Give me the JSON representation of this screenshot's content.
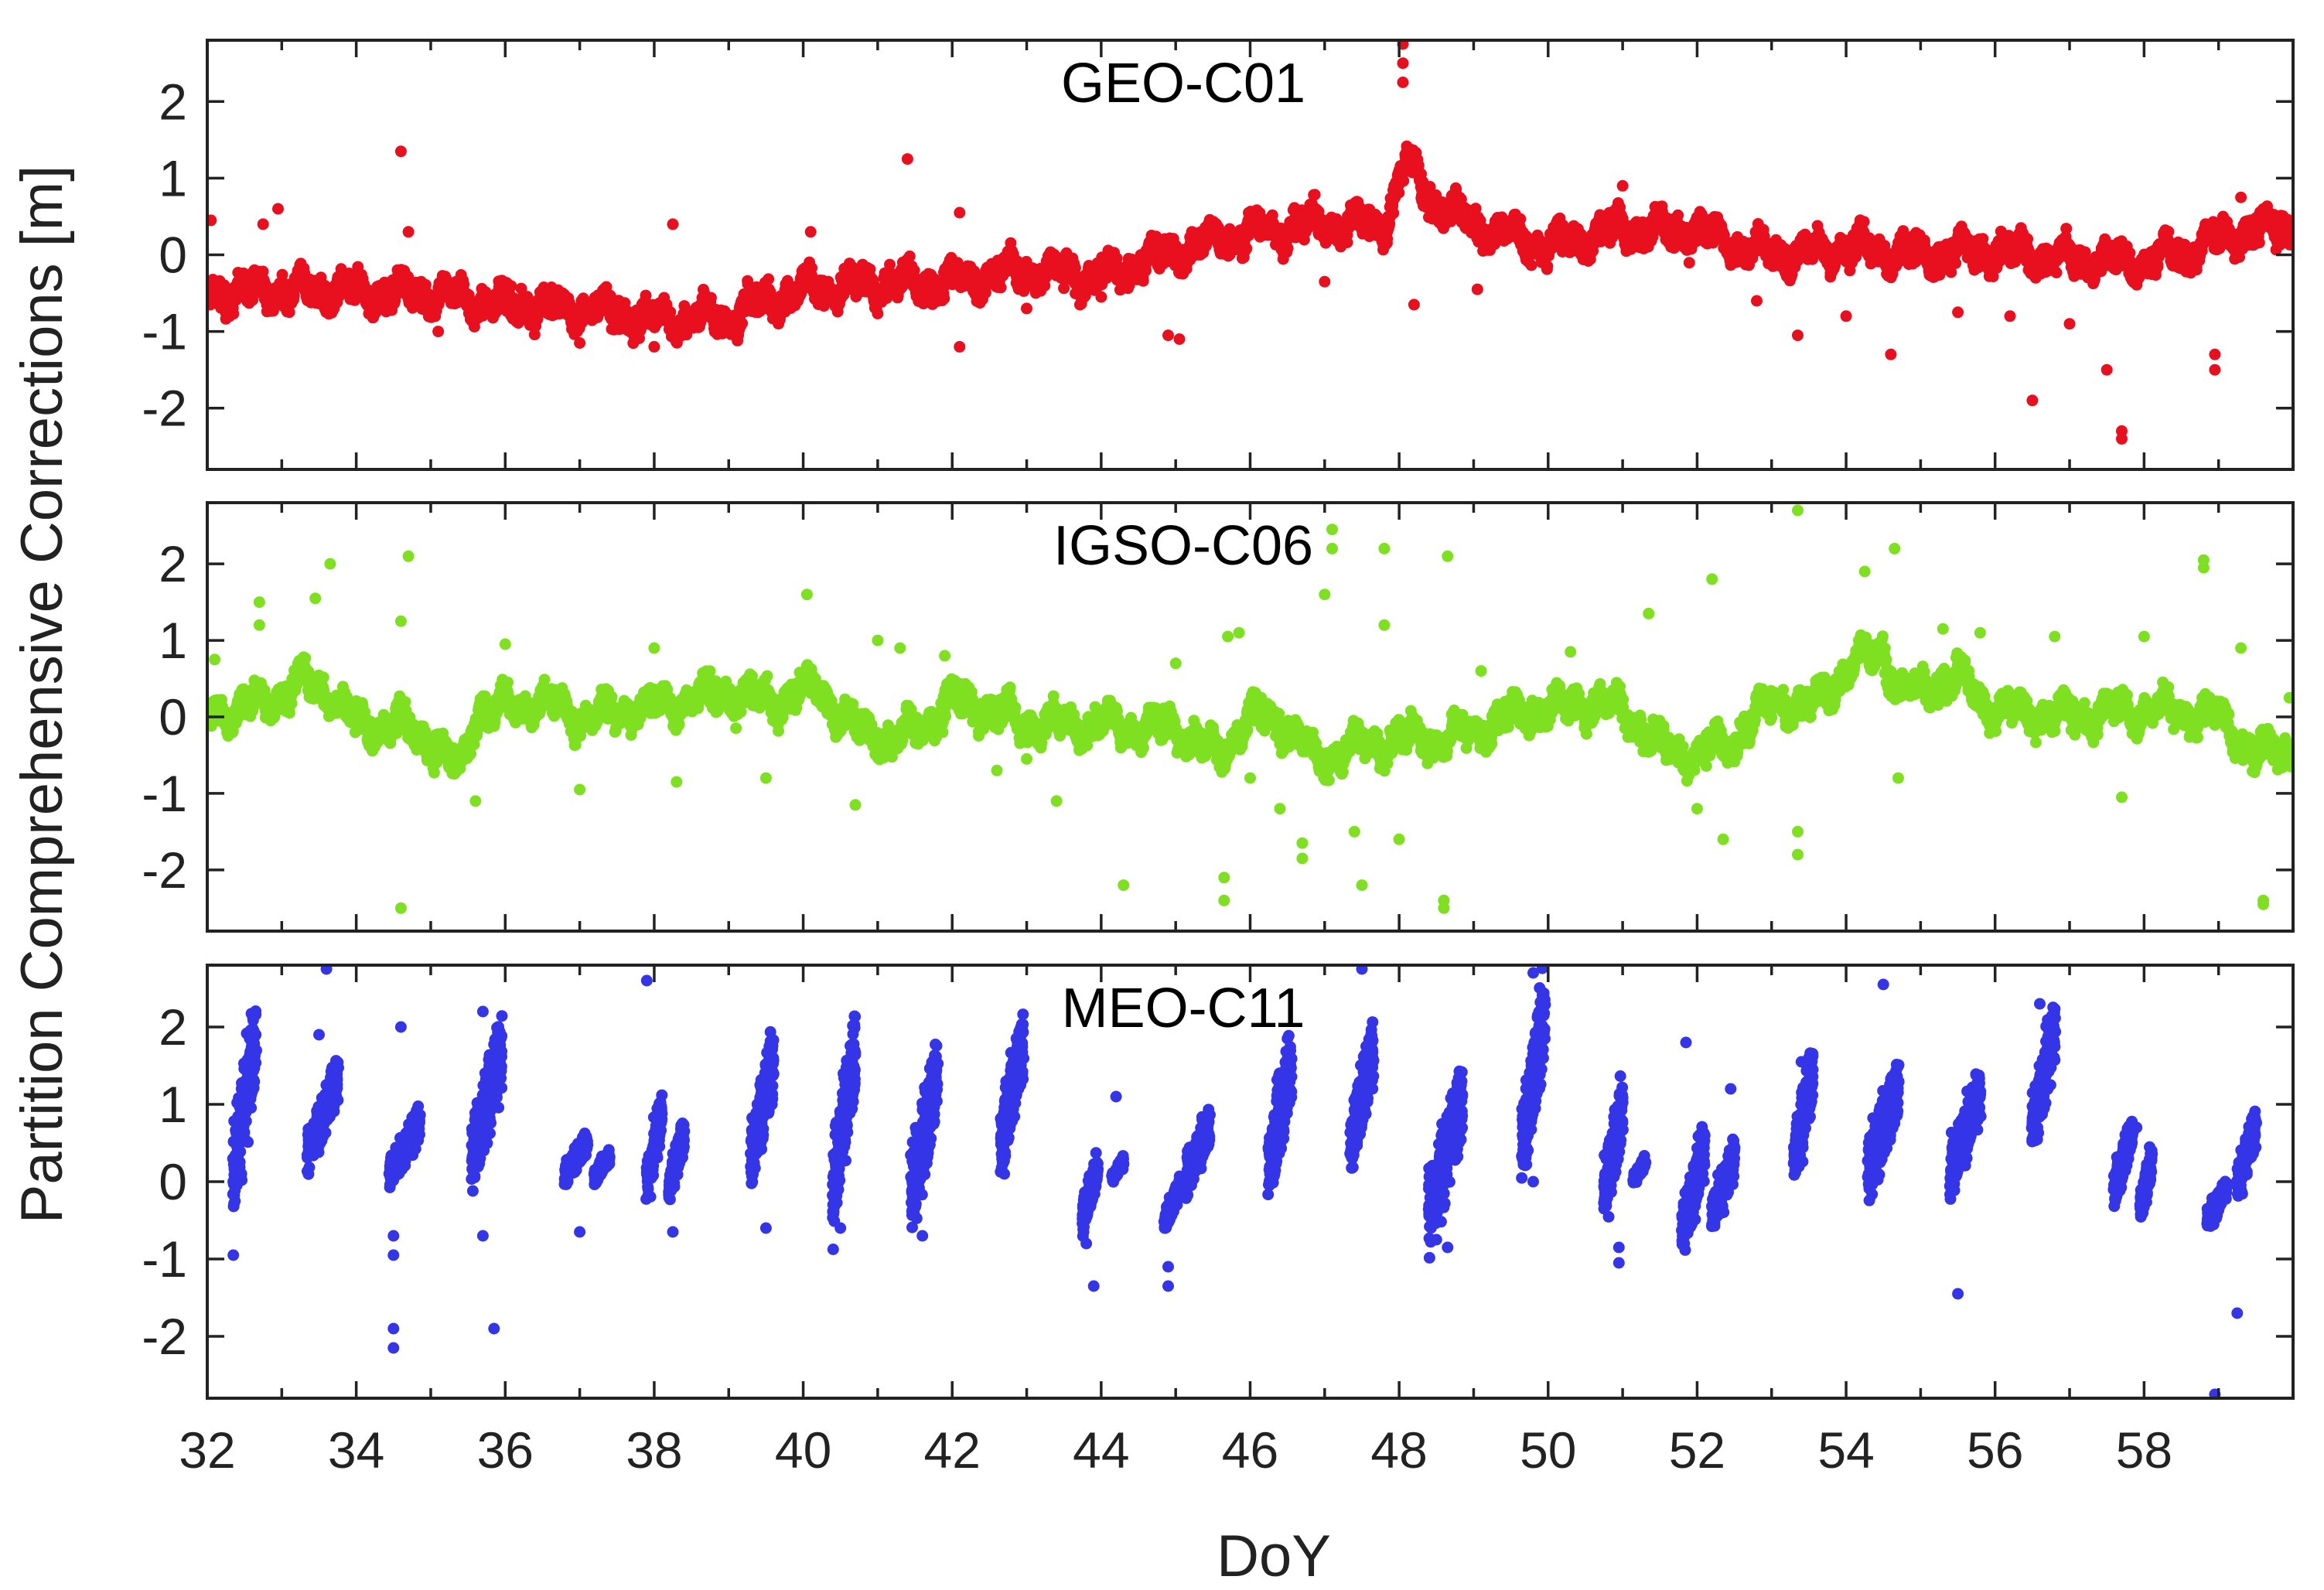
{
  "chart_data": {
    "type": "scatter",
    "ylabel": "Partition Comprehensive Corrections [m]",
    "xlabel": "DoY",
    "xlim": [
      32,
      60
    ],
    "x_ticks": [
      32,
      34,
      36,
      38,
      40,
      42,
      44,
      46,
      48,
      50,
      52,
      54,
      56,
      58
    ],
    "x_minor_ticks": [
      33,
      35,
      37,
      39,
      41,
      43,
      45,
      47,
      49,
      51,
      53,
      55,
      57,
      59
    ],
    "ylim": [
      -2.8,
      2.8
    ],
    "y_ticks": [
      -2,
      -1,
      0,
      1,
      2
    ],
    "grid": false,
    "legend": "none",
    "panels": [
      {
        "title": "GEO-C01",
        "color": "#e8101e",
        "pattern": "continuous",
        "baseline": [
          [
            32.0,
            -0.5
          ],
          [
            33.0,
            -0.45
          ],
          [
            34.0,
            -0.5
          ],
          [
            35.0,
            -0.5
          ],
          [
            36.0,
            -0.65
          ],
          [
            37.0,
            -0.7
          ],
          [
            38.0,
            -0.85
          ],
          [
            39.0,
            -0.8
          ],
          [
            40.0,
            -0.45
          ],
          [
            41.0,
            -0.4
          ],
          [
            42.0,
            -0.35
          ],
          [
            43.0,
            -0.2
          ],
          [
            44.0,
            -0.3
          ],
          [
            45.0,
            0.05
          ],
          [
            46.0,
            0.3
          ],
          [
            47.0,
            0.4
          ],
          [
            47.8,
            0.4
          ],
          [
            48.1,
            1.2
          ],
          [
            48.5,
            0.65
          ],
          [
            49.0,
            0.4
          ],
          [
            50.0,
            0.1
          ],
          [
            51.0,
            0.35
          ],
          [
            52.0,
            0.3
          ],
          [
            53.0,
            0.0
          ],
          [
            54.0,
            0.1
          ],
          [
            55.0,
            0.0
          ],
          [
            56.0,
            0.05
          ],
          [
            57.0,
            -0.05
          ],
          [
            58.0,
            -0.1
          ],
          [
            59.0,
            0.2
          ],
          [
            60.0,
            0.4
          ]
        ],
        "outliers": [
          [
            32.05,
            0.45
          ],
          [
            32.3,
            -0.8
          ],
          [
            32.75,
            0.4
          ],
          [
            32.95,
            0.6
          ],
          [
            34.6,
            1.35
          ],
          [
            34.7,
            0.3
          ],
          [
            35.1,
            -1.0
          ],
          [
            37.0,
            -1.15
          ],
          [
            38.0,
            -1.2
          ],
          [
            38.25,
            0.4
          ],
          [
            40.1,
            0.3
          ],
          [
            41.4,
            1.25
          ],
          [
            41.7,
            -0.35
          ],
          [
            42.1,
            -1.2
          ],
          [
            42.1,
            0.55
          ],
          [
            43.0,
            -0.7
          ],
          [
            44.0,
            -0.55
          ],
          [
            44.9,
            -1.05
          ],
          [
            45.05,
            -1.1
          ],
          [
            47.0,
            -0.35
          ],
          [
            48.05,
            2.75
          ],
          [
            48.05,
            2.5
          ],
          [
            48.05,
            2.25
          ],
          [
            48.2,
            -0.65
          ],
          [
            49.05,
            -0.45
          ],
          [
            51.0,
            0.9
          ],
          [
            52.8,
            -0.6
          ],
          [
            53.35,
            -1.05
          ],
          [
            54.0,
            -0.8
          ],
          [
            54.6,
            -1.3
          ],
          [
            55.5,
            -0.75
          ],
          [
            56.2,
            -0.8
          ],
          [
            56.5,
            -1.9
          ],
          [
            57.0,
            -0.9
          ],
          [
            57.5,
            -1.5
          ],
          [
            57.7,
            -2.3
          ],
          [
            57.7,
            -2.4
          ],
          [
            58.95,
            -1.3
          ],
          [
            58.95,
            -1.5
          ],
          [
            59.3,
            0.75
          ]
        ]
      },
      {
        "title": "IGSO-C06",
        "color": "#7ee020",
        "pattern": "continuous",
        "baseline": [
          [
            32.0,
            0.05
          ],
          [
            32.5,
            0.1
          ],
          [
            33.0,
            0.3
          ],
          [
            33.3,
            0.45
          ],
          [
            33.6,
            0.35
          ],
          [
            34.0,
            -0.1
          ],
          [
            34.5,
            -0.1
          ],
          [
            35.0,
            -0.3
          ],
          [
            35.4,
            -0.7
          ],
          [
            35.6,
            0.05
          ],
          [
            36.5,
            0.2
          ],
          [
            37.0,
            0.0
          ],
          [
            38.0,
            0.15
          ],
          [
            39.0,
            0.3
          ],
          [
            39.6,
            0.2
          ],
          [
            40.2,
            0.4
          ],
          [
            40.6,
            -0.1
          ],
          [
            41.2,
            -0.3
          ],
          [
            41.6,
            -0.1
          ],
          [
            42.0,
            0.2
          ],
          [
            42.5,
            0.1
          ],
          [
            43.0,
            -0.1
          ],
          [
            44.0,
            -0.1
          ],
          [
            45.0,
            -0.15
          ],
          [
            45.6,
            -0.5
          ],
          [
            46.0,
            0.0
          ],
          [
            46.5,
            -0.1
          ],
          [
            46.9,
            -0.6
          ],
          [
            47.3,
            -0.4
          ],
          [
            48.0,
            -0.3
          ],
          [
            48.5,
            -0.3
          ],
          [
            49.0,
            -0.2
          ],
          [
            49.5,
            0.0
          ],
          [
            50.5,
            0.2
          ],
          [
            51.0,
            0.1
          ],
          [
            51.5,
            -0.4
          ],
          [
            52.0,
            -0.5
          ],
          [
            52.5,
            -0.3
          ],
          [
            53.0,
            0.2
          ],
          [
            53.5,
            0.1
          ],
          [
            54.0,
            0.6
          ],
          [
            54.5,
            0.9
          ],
          [
            54.7,
            0.3
          ],
          [
            55.5,
            0.5
          ],
          [
            56.0,
            0.1
          ],
          [
            57.0,
            0.0
          ],
          [
            58.0,
            0.1
          ],
          [
            59.0,
            0.0
          ],
          [
            59.5,
            -0.5
          ],
          [
            60.0,
            -0.4
          ]
        ],
        "outliers": [
          [
            32.1,
            0.75
          ],
          [
            32.7,
            1.5
          ],
          [
            32.7,
            1.2
          ],
          [
            33.45,
            1.55
          ],
          [
            33.65,
            2.0
          ],
          [
            34.6,
            1.25
          ],
          [
            34.7,
            2.1
          ],
          [
            34.6,
            -2.5
          ],
          [
            35.6,
            -1.1
          ],
          [
            36.0,
            0.95
          ],
          [
            37.0,
            -0.95
          ],
          [
            38.0,
            0.9
          ],
          [
            38.3,
            -0.85
          ],
          [
            39.5,
            -0.8
          ],
          [
            40.05,
            1.6
          ],
          [
            40.7,
            -1.15
          ],
          [
            41.0,
            1.0
          ],
          [
            41.3,
            0.9
          ],
          [
            41.9,
            0.8
          ],
          [
            42.6,
            -0.7
          ],
          [
            43.0,
            -0.55
          ],
          [
            43.4,
            -1.1
          ],
          [
            44.3,
            -2.2
          ],
          [
            45.0,
            0.7
          ],
          [
            45.7,
            1.05
          ],
          [
            45.85,
            1.1
          ],
          [
            45.65,
            -2.1
          ],
          [
            45.65,
            -2.4
          ],
          [
            46.0,
            -0.8
          ],
          [
            46.4,
            -1.2
          ],
          [
            46.7,
            -1.65
          ],
          [
            46.7,
            -1.85
          ],
          [
            47.1,
            2.45
          ],
          [
            47.1,
            2.2
          ],
          [
            47.0,
            1.6
          ],
          [
            47.5,
            -2.2
          ],
          [
            47.4,
            -1.5
          ],
          [
            47.8,
            2.2
          ],
          [
            47.8,
            1.2
          ],
          [
            48.0,
            -1.6
          ],
          [
            48.65,
            2.1
          ],
          [
            48.6,
            -2.4
          ],
          [
            48.6,
            -2.5
          ],
          [
            49.1,
            0.6
          ],
          [
            50.3,
            0.85
          ],
          [
            51.35,
            1.35
          ],
          [
            52.0,
            -1.2
          ],
          [
            52.2,
            1.8
          ],
          [
            52.35,
            -1.6
          ],
          [
            53.35,
            2.7
          ],
          [
            53.35,
            -1.8
          ],
          [
            53.35,
            -1.5
          ],
          [
            54.25,
            1.9
          ],
          [
            54.65,
            2.2
          ],
          [
            54.7,
            -0.8
          ],
          [
            55.3,
            1.15
          ],
          [
            55.8,
            1.1
          ],
          [
            56.8,
            1.05
          ],
          [
            57.7,
            -1.05
          ],
          [
            58.0,
            1.05
          ],
          [
            58.8,
            2.05
          ],
          [
            58.8,
            1.95
          ],
          [
            59.3,
            0.9
          ],
          [
            59.6,
            -2.4
          ],
          [
            59.6,
            -2.45
          ],
          [
            59.95,
            0.25
          ]
        ]
      },
      {
        "title": "MEO-C11",
        "color": "#3535e8",
        "pattern": "passes",
        "passes": [
          [
            32.35,
            32.65,
            -0.2,
            2.2
          ],
          [
            33.35,
            33.75,
            0.2,
            1.5
          ],
          [
            34.45,
            34.85,
            0.0,
            0.9
          ],
          [
            35.55,
            35.95,
            0.0,
            2.0
          ],
          [
            36.8,
            37.1,
            0.0,
            0.6
          ],
          [
            37.2,
            37.4,
            0.0,
            0.4
          ],
          [
            37.9,
            38.1,
            -0.2,
            1.1
          ],
          [
            38.2,
            38.4,
            -0.2,
            0.8
          ],
          [
            39.3,
            39.6,
            0.0,
            1.9
          ],
          [
            40.4,
            40.7,
            -0.4,
            2.0
          ],
          [
            41.45,
            41.8,
            -0.5,
            1.7
          ],
          [
            42.65,
            42.95,
            0.2,
            2.1
          ],
          [
            43.75,
            43.95,
            -0.6,
            0.3
          ],
          [
            44.15,
            44.3,
            0.0,
            0.3
          ],
          [
            44.85,
            45.05,
            -0.6,
            0.0
          ],
          [
            45.15,
            45.45,
            -0.1,
            0.9
          ],
          [
            46.25,
            46.55,
            -0.1,
            1.8
          ],
          [
            47.35,
            47.65,
            0.2,
            2.0
          ],
          [
            48.4,
            48.85,
            -0.7,
            1.4
          ],
          [
            49.65,
            49.95,
            0.1,
            2.5
          ],
          [
            50.75,
            51.0,
            -0.4,
            1.2
          ],
          [
            51.15,
            51.3,
            0.0,
            0.3
          ],
          [
            51.8,
            52.1,
            -0.9,
            0.7
          ],
          [
            52.2,
            52.5,
            -0.6,
            0.5
          ],
          [
            53.3,
            53.55,
            0.1,
            1.6
          ],
          [
            54.3,
            54.7,
            -0.1,
            1.5
          ],
          [
            55.4,
            55.8,
            -0.1,
            1.4
          ],
          [
            56.5,
            56.8,
            0.5,
            2.2
          ],
          [
            57.6,
            57.85,
            -0.2,
            0.8
          ],
          [
            57.95,
            58.1,
            -0.5,
            0.4
          ],
          [
            58.85,
            59.1,
            -0.6,
            0.0
          ],
          [
            59.25,
            59.5,
            -0.2,
            0.9
          ]
        ],
        "outliers": [
          [
            32.35,
            -0.95
          ],
          [
            33.5,
            1.9
          ],
          [
            33.6,
            2.75
          ],
          [
            34.6,
            2.0
          ],
          [
            34.5,
            -1.9
          ],
          [
            34.5,
            -2.15
          ],
          [
            34.5,
            -0.7
          ],
          [
            34.5,
            -0.95
          ],
          [
            35.7,
            2.2
          ],
          [
            35.85,
            -1.9
          ],
          [
            35.7,
            -0.7
          ],
          [
            37.0,
            -0.65
          ],
          [
            37.9,
            2.6
          ],
          [
            38.25,
            -0.65
          ],
          [
            39.5,
            -0.6
          ],
          [
            40.5,
            -0.6
          ],
          [
            41.6,
            -0.7
          ],
          [
            42.7,
            0.1
          ],
          [
            43.8,
            -0.8
          ],
          [
            43.9,
            -1.35
          ],
          [
            44.2,
            1.1
          ],
          [
            44.9,
            -1.1
          ],
          [
            44.9,
            -1.35
          ],
          [
            46.5,
            1.85
          ],
          [
            47.5,
            2.75
          ],
          [
            48.5,
            -0.75
          ],
          [
            48.65,
            -0.85
          ],
          [
            49.8,
            2.7
          ],
          [
            49.8,
            0.0
          ],
          [
            50.95,
            -1.05
          ],
          [
            50.95,
            -0.85
          ],
          [
            51.85,
            1.8
          ],
          [
            52.45,
            1.2
          ],
          [
            53.4,
            1.55
          ],
          [
            54.5,
            2.55
          ],
          [
            55.5,
            -1.45
          ],
          [
            56.6,
            2.3
          ],
          [
            57.9,
            0.7
          ],
          [
            58.95,
            -2.75
          ],
          [
            59.25,
            -1.7
          ]
        ]
      }
    ]
  }
}
